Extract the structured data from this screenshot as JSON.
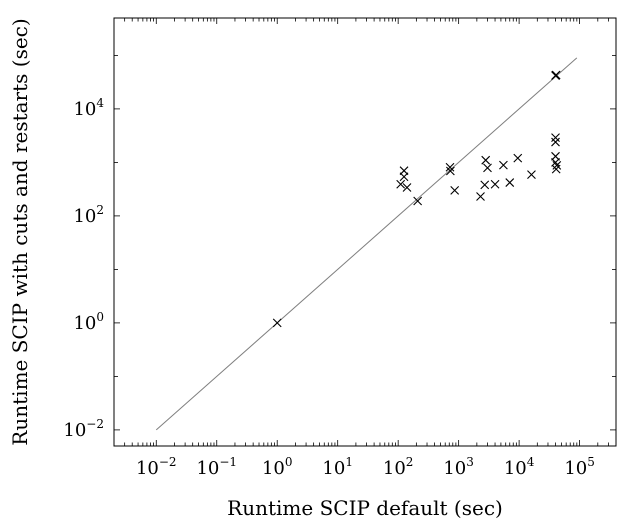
{
  "chart_data": {
    "type": "scatter",
    "xlabel": "Runtime SCIP default (sec)",
    "ylabel": "Runtime SCIP with cuts and restarts (sec)",
    "x_scale": "log",
    "y_scale": "log",
    "xlim": [
      0.002,
      400000
    ],
    "ylim": [
      0.005,
      500000
    ],
    "x_ticks": [
      {
        "value": 0.01,
        "base": "10",
        "exp": "−2"
      },
      {
        "value": 0.1,
        "base": "10",
        "exp": "−1"
      },
      {
        "value": 1,
        "base": "10",
        "exp": "0"
      },
      {
        "value": 10,
        "base": "10",
        "exp": "1"
      },
      {
        "value": 100,
        "base": "10",
        "exp": "2"
      },
      {
        "value": 1000,
        "base": "10",
        "exp": "3"
      },
      {
        "value": 10000,
        "base": "10",
        "exp": "4"
      },
      {
        "value": 100000,
        "base": "10",
        "exp": "5"
      }
    ],
    "y_ticks": [
      {
        "value": 0.01,
        "base": "10",
        "exp": "−2"
      },
      {
        "value": 1,
        "base": "10",
        "exp": "0"
      },
      {
        "value": 100,
        "base": "10",
        "exp": "2"
      },
      {
        "value": 10000,
        "base": "10",
        "exp": "4"
      }
    ],
    "diagonal": {
      "from": 0.01,
      "to": 90000,
      "color": "#7f7f7f"
    },
    "marker": "x",
    "points": [
      {
        "x": 1.0,
        "y": 1.0
      },
      {
        "x": 110,
        "y": 390
      },
      {
        "x": 125,
        "y": 700
      },
      {
        "x": 125,
        "y": 540
      },
      {
        "x": 140,
        "y": 340
      },
      {
        "x": 210,
        "y": 190
      },
      {
        "x": 720,
        "y": 810
      },
      {
        "x": 730,
        "y": 690
      },
      {
        "x": 860,
        "y": 300
      },
      {
        "x": 2300,
        "y": 230
      },
      {
        "x": 2700,
        "y": 380
      },
      {
        "x": 2800,
        "y": 1100
      },
      {
        "x": 3000,
        "y": 790
      },
      {
        "x": 4000,
        "y": 390
      },
      {
        "x": 5500,
        "y": 890
      },
      {
        "x": 7000,
        "y": 420
      },
      {
        "x": 9500,
        "y": 1200
      },
      {
        "x": 16000,
        "y": 590
      },
      {
        "x": 40000,
        "y": 2900
      },
      {
        "x": 40000,
        "y": 2400
      },
      {
        "x": 40000,
        "y": 1300
      },
      {
        "x": 40000,
        "y": 1000
      },
      {
        "x": 41000,
        "y": 750
      },
      {
        "x": 42000,
        "y": 880
      },
      {
        "x": 40000,
        "y": 42000
      },
      {
        "x": 41000,
        "y": 43000
      }
    ],
    "grid": false,
    "legend": "none"
  }
}
